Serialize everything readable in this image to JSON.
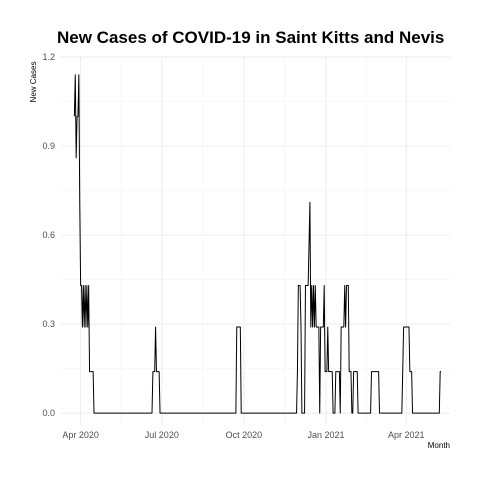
{
  "chart_data": {
    "type": "line",
    "title": "New Cases of COVID-19 in Saint Kitts and Nevis",
    "xlabel": "Month",
    "ylabel": "New Cases",
    "x_ticks": [
      {
        "date": "2020-04-01",
        "label": "Apr 2020"
      },
      {
        "date": "2020-07-01",
        "label": "Jul 2020"
      },
      {
        "date": "2020-10-01",
        "label": "Oct 2020"
      },
      {
        "date": "2021-01-01",
        "label": "Jan 2021"
      },
      {
        "date": "2021-04-01",
        "label": "Apr 2021"
      }
    ],
    "y_ticks": [
      "0.0",
      "0.3",
      "0.6",
      "0.9",
      "1.2"
    ],
    "xlim": [
      "2020-03-10",
      "2021-05-20"
    ],
    "ylim": [
      -0.04,
      1.2
    ],
    "grid": true,
    "series": [
      {
        "color": "#000000",
        "points": [
          [
            "2020-03-25",
            1.0
          ],
          [
            "2020-03-26",
            1.14
          ],
          [
            "2020-03-27",
            0.86
          ],
          [
            "2020-03-28",
            1.0
          ],
          [
            "2020-03-29",
            1.0
          ],
          [
            "2020-03-30",
            1.14
          ],
          [
            "2020-03-31",
            0.71
          ],
          [
            "2020-04-01",
            0.43
          ],
          [
            "2020-04-02",
            0.43
          ],
          [
            "2020-04-03",
            0.29
          ],
          [
            "2020-04-04",
            0.43
          ],
          [
            "2020-04-05",
            0.29
          ],
          [
            "2020-04-06",
            0.43
          ],
          [
            "2020-04-07",
            0.29
          ],
          [
            "2020-04-08",
            0.43
          ],
          [
            "2020-04-09",
            0.29
          ],
          [
            "2020-04-10",
            0.43
          ],
          [
            "2020-04-11",
            0.14
          ],
          [
            "2020-04-15",
            0.14
          ],
          [
            "2020-04-16",
            0.0
          ],
          [
            "2020-06-20",
            0.0
          ],
          [
            "2020-06-21",
            0.14
          ],
          [
            "2020-06-23",
            0.14
          ],
          [
            "2020-06-24",
            0.29
          ],
          [
            "2020-06-25",
            0.14
          ],
          [
            "2020-06-28",
            0.14
          ],
          [
            "2020-06-29",
            0.0
          ],
          [
            "2020-09-22",
            0.0
          ],
          [
            "2020-09-23",
            0.29
          ],
          [
            "2020-09-27",
            0.29
          ],
          [
            "2020-09-28",
            0.0
          ],
          [
            "2020-11-29",
            0.0
          ],
          [
            "2020-11-30",
            0.14
          ],
          [
            "2020-12-01",
            0.43
          ],
          [
            "2020-12-03",
            0.43
          ],
          [
            "2020-12-04",
            0.29
          ],
          [
            "2020-12-05",
            0.0
          ],
          [
            "2020-12-08",
            0.0
          ],
          [
            "2020-12-09",
            0.43
          ],
          [
            "2020-12-12",
            0.43
          ],
          [
            "2020-12-13",
            0.57
          ],
          [
            "2020-12-14",
            0.71
          ],
          [
            "2020-12-15",
            0.29
          ],
          [
            "2020-12-16",
            0.43
          ],
          [
            "2020-12-17",
            0.29
          ],
          [
            "2020-12-18",
            0.43
          ],
          [
            "2020-12-19",
            0.29
          ],
          [
            "2020-12-20",
            0.43
          ],
          [
            "2020-12-21",
            0.29
          ],
          [
            "2020-12-24",
            0.29
          ],
          [
            "2020-12-25",
            0.0
          ],
          [
            "2020-12-26",
            0.29
          ],
          [
            "2020-12-29",
            0.29
          ],
          [
            "2020-12-30",
            0.43
          ],
          [
            "2020-12-31",
            0.14
          ],
          [
            "2021-01-02",
            0.14
          ],
          [
            "2021-01-03",
            0.29
          ],
          [
            "2021-01-04",
            0.14
          ],
          [
            "2021-01-08",
            0.14
          ],
          [
            "2021-01-09",
            0.0
          ],
          [
            "2021-01-11",
            0.0
          ],
          [
            "2021-01-12",
            0.14
          ],
          [
            "2021-01-16",
            0.14
          ],
          [
            "2021-01-17",
            0.0
          ],
          [
            "2021-01-18",
            0.29
          ],
          [
            "2021-01-21",
            0.29
          ],
          [
            "2021-01-22",
            0.43
          ],
          [
            "2021-01-23",
            0.29
          ],
          [
            "2021-01-24",
            0.43
          ],
          [
            "2021-01-26",
            0.43
          ],
          [
            "2021-01-27",
            0.14
          ],
          [
            "2021-01-29",
            0.14
          ],
          [
            "2021-01-30",
            0.0
          ],
          [
            "2021-01-31",
            0.0
          ],
          [
            "2021-02-01",
            0.14
          ],
          [
            "2021-02-05",
            0.14
          ],
          [
            "2021-02-06",
            0.0
          ],
          [
            "2021-02-20",
            0.0
          ],
          [
            "2021-02-21",
            0.14
          ],
          [
            "2021-03-01",
            0.14
          ],
          [
            "2021-03-02",
            0.0
          ],
          [
            "2021-03-27",
            0.0
          ],
          [
            "2021-03-28",
            0.14
          ],
          [
            "2021-03-29",
            0.29
          ],
          [
            "2021-04-04",
            0.29
          ],
          [
            "2021-04-05",
            0.14
          ],
          [
            "2021-04-07",
            0.14
          ],
          [
            "2021-04-08",
            0.0
          ],
          [
            "2021-05-08",
            0.0
          ],
          [
            "2021-05-09",
            0.14
          ],
          [
            "2021-05-10",
            0.14
          ]
        ]
      }
    ]
  }
}
